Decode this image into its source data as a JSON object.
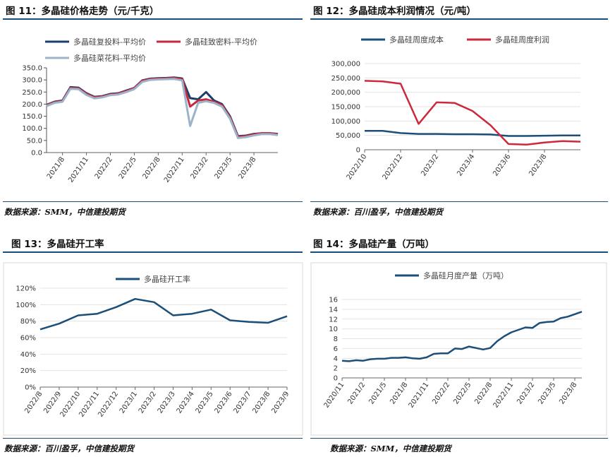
{
  "panels": [
    {
      "title": "图 11：多晶硅价格走势（元/千克）",
      "source": "数据来源：SMM，中信建投期货",
      "chart_data": {
        "type": "line",
        "ylim": [
          0,
          350
        ],
        "yticks": [
          "0.0",
          "50.0",
          "100.0",
          "150.0",
          "200.0",
          "250.0",
          "300.0",
          "350.0"
        ],
        "x_range": [
          "2021-06",
          "2023-11"
        ],
        "xticks": [
          "2021/8",
          "2021/11",
          "2022/2",
          "2022/5",
          "2022/8",
          "2022/11",
          "2023/2",
          "2023/5",
          "2023/8"
        ],
        "legend_position": "top",
        "series": [
          {
            "name": "多晶硅复投料-平均价",
            "color": "#1b3f6b",
            "x": [
              "2021-06",
              "2021-07",
              "2021-08",
              "2021-09",
              "2021-10",
              "2021-11",
              "2021-12",
              "2022-01",
              "2022-02",
              "2022-03",
              "2022-04",
              "2022-05",
              "2022-06",
              "2022-07",
              "2022-08",
              "2022-09",
              "2022-10",
              "2022-11",
              "2022-12",
              "2023-01",
              "2023-02",
              "2023-03",
              "2023-04",
              "2023-05",
              "2023-06",
              "2023-07",
              "2023-08",
              "2023-09",
              "2023-10",
              "2023-11"
            ],
            "values": [
              197,
              210,
              215,
              270,
              268,
              245,
              230,
              233,
              242,
              245,
              256,
              267,
              298,
              305,
              307,
              308,
              310,
              306,
              225,
              220,
              250,
              215,
              200,
              150,
              68,
              70,
              77,
              80,
              80,
              77
            ]
          },
          {
            "name": "多晶硅致密料-平均价",
            "color": "#c8283c",
            "x": [
              "2021-06",
              "2021-07",
              "2021-08",
              "2021-09",
              "2021-10",
              "2021-11",
              "2021-12",
              "2022-01",
              "2022-02",
              "2022-03",
              "2022-04",
              "2022-05",
              "2022-06",
              "2022-07",
              "2022-08",
              "2022-09",
              "2022-10",
              "2022-11",
              "2022-12",
              "2023-01",
              "2023-02",
              "2023-03",
              "2023-04",
              "2023-05",
              "2023-06",
              "2023-07",
              "2023-08",
              "2023-09",
              "2023-10",
              "2023-11"
            ],
            "values": [
              195,
              208,
              213,
              267,
              265,
              242,
              228,
              231,
              240,
              243,
              254,
              265,
              296,
              303,
              305,
              306,
              308,
              303,
              190,
              215,
              220,
              210,
              196,
              145,
              65,
              68,
              75,
              80,
              80,
              75
            ]
          },
          {
            "name": "多晶硅菜花料-平均价",
            "color": "#9db3c9",
            "x": [
              "2021-06",
              "2021-07",
              "2021-08",
              "2021-09",
              "2021-10",
              "2021-11",
              "2021-12",
              "2022-01",
              "2022-02",
              "2022-03",
              "2022-04",
              "2022-05",
              "2022-06",
              "2022-07",
              "2022-08",
              "2022-09",
              "2022-10",
              "2022-11",
              "2022-12",
              "2023-01",
              "2023-02",
              "2023-03",
              "2023-04",
              "2023-05",
              "2023-06",
              "2023-07",
              "2023-08",
              "2023-09",
              "2023-10",
              "2023-11"
            ],
            "values": [
              192,
              205,
              210,
              263,
              262,
              238,
              224,
              228,
              237,
              240,
              250,
              262,
              292,
              300,
              302,
              303,
              304,
              298,
              110,
              205,
              212,
              205,
              190,
              140,
              60,
              64,
              71,
              76,
              76,
              72
            ]
          }
        ]
      }
    },
    {
      "title": "图 12：多晶硅成本利润情况（元/吨）",
      "source": "数据来源：百川盈孚，中信建投期货",
      "chart_data": {
        "type": "line",
        "ylim": [
          0,
          300000
        ],
        "yticks": [
          "0",
          "50,000",
          "100,000",
          "150,000",
          "200,000",
          "250,000",
          "300,000"
        ],
        "x_range": [
          "2022-10",
          "2023-10"
        ],
        "xticks": [
          "2022/10",
          "2022/12",
          "2023/2",
          "2023/4",
          "2023/6",
          "2023/8"
        ],
        "legend_position": "top",
        "series": [
          {
            "name": "多晶硅周度成本",
            "color": "#1b4f7a",
            "x": [
              "2022-10",
              "2022-11",
              "2022-12",
              "2023-01",
              "2023-02",
              "2023-03",
              "2023-04",
              "2023-05",
              "2023-06",
              "2023-07",
              "2023-08",
              "2023-09",
              "2023-10"
            ],
            "values": [
              66000,
              66000,
              58000,
              55000,
              55000,
              54000,
              54000,
              53000,
              48000,
              48000,
              49000,
              50000,
              50000
            ]
          },
          {
            "name": "多晶硅周度利润",
            "color": "#cc2a3c",
            "x": [
              "2022-10",
              "2022-11",
              "2022-12",
              "2023-01",
              "2023-02",
              "2023-03",
              "2023-04",
              "2023-05",
              "2023-06",
              "2023-07",
              "2023-08",
              "2023-09",
              "2023-10"
            ],
            "values": [
              240000,
              238000,
              230000,
              90000,
              165000,
              163000,
              135000,
              85000,
              20000,
              18000,
              25000,
              30000,
              28000
            ]
          }
        ]
      }
    },
    {
      "title": "图 13：多晶硅开工率",
      "source": "数据来源：百川盈孚，中信建投期货",
      "chart_data": {
        "type": "line",
        "ylim": [
          0,
          120
        ],
        "yticks": [
          "0%",
          "20%",
          "40%",
          "60%",
          "80%",
          "100%",
          "120%"
        ],
        "categories": [
          "2022/8",
          "2022/9",
          "2022/10",
          "2022/11",
          "2022/12",
          "2023/1",
          "2023/2",
          "2023/3",
          "2023/4",
          "2023/5",
          "2023/6",
          "2023/7",
          "2023/8",
          "2023/9"
        ],
        "legend_position": "top",
        "series": [
          {
            "name": "多晶硅开工率",
            "color": "#1b4f7a",
            "values": [
              70,
              77,
              87,
              89,
              97,
              107,
              103,
              87,
              89,
              94,
              81,
              79,
              78,
              86
            ]
          }
        ]
      }
    },
    {
      "title": "图 14：多晶硅产量（万吨）",
      "source": "数据来源：SMM，中信建投期货",
      "chart_data": {
        "type": "line",
        "ylim": [
          0,
          16
        ],
        "yticks": [
          "0",
          "2",
          "4",
          "6",
          "8",
          "10",
          "12",
          "14",
          "16"
        ],
        "categories": [
          "2020/11",
          "2020/12",
          "2021/1",
          "2021/2",
          "2021/3",
          "2021/4",
          "2021/5",
          "2021/6",
          "2021/7",
          "2021/8",
          "2021/9",
          "2021/10",
          "2021/11",
          "2021/12",
          "2022/1",
          "2022/2",
          "2022/3",
          "2022/4",
          "2022/5",
          "2022/6",
          "2022/7",
          "2022/8",
          "2022/9",
          "2022/10",
          "2022/11",
          "2022/12",
          "2023/1",
          "2023/2",
          "2023/3",
          "2023/4",
          "2023/5",
          "2023/6",
          "2023/7",
          "2023/8",
          "2023/9"
        ],
        "tick_labels": [
          "2020/11",
          "2021/2",
          "2021/5",
          "2021/8",
          "2021/11",
          "2022/2",
          "2022/5",
          "2022/8",
          "2022/11",
          "2023/2",
          "2023/5",
          "2023/8"
        ],
        "legend_position": "top",
        "series": [
          {
            "name": "多晶硅月度产量（万吨）",
            "color": "#1b4f7a",
            "values": [
              3.5,
              3.4,
              3.6,
              3.5,
              3.8,
              3.9,
              3.9,
              4.1,
              4.1,
              4.2,
              4.0,
              3.9,
              4.2,
              4.9,
              5.0,
              5.0,
              6.0,
              5.9,
              6.4,
              6.1,
              5.8,
              6.1,
              7.5,
              8.5,
              9.3,
              9.8,
              10.3,
              10.2,
              11.2,
              11.4,
              11.5,
              12.2,
              12.5,
              13.0,
              13.5
            ]
          }
        ]
      }
    }
  ]
}
